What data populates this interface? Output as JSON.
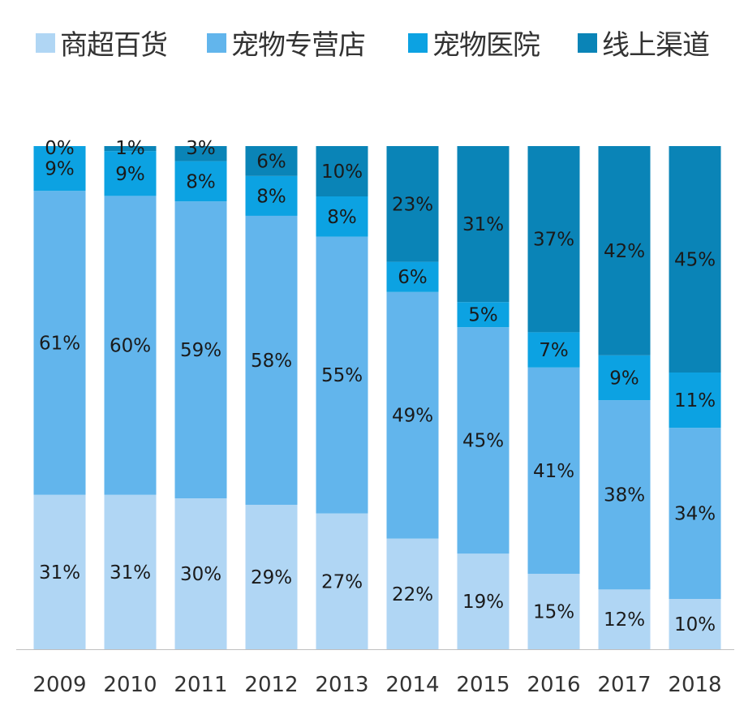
{
  "chart_data": {
    "type": "bar",
    "stacked": true,
    "percent_labels": true,
    "categories": [
      "2009",
      "2010",
      "2011",
      "2012",
      "2013",
      "2014",
      "2015",
      "2016",
      "2017",
      "2018"
    ],
    "series": [
      {
        "name": "商超百货",
        "color": "#b0d6f4",
        "values": [
          31,
          31,
          30,
          29,
          27,
          22,
          19,
          15,
          12,
          10
        ]
      },
      {
        "name": "宠物专营店",
        "color": "#62b5ec",
        "values": [
          61,
          60,
          59,
          58,
          55,
          49,
          45,
          41,
          38,
          34
        ]
      },
      {
        "name": "宠物医院",
        "color": "#0ca2e2",
        "values": [
          9,
          9,
          8,
          8,
          8,
          6,
          5,
          7,
          9,
          11
        ]
      },
      {
        "name": "线上渠道",
        "color": "#0a84b7",
        "values": [
          0,
          1,
          3,
          6,
          10,
          23,
          31,
          37,
          42,
          45
        ]
      }
    ],
    "ylim": [
      0,
      100
    ],
    "grid": false,
    "legend_position": "top"
  }
}
